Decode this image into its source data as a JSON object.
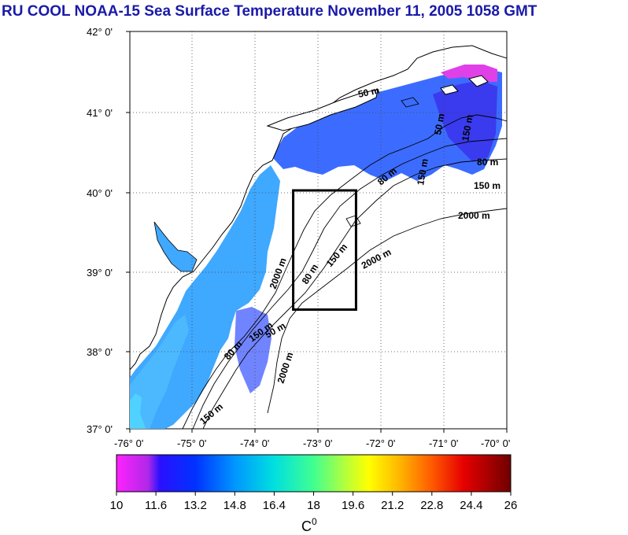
{
  "title": "RU COOL  NOAA-15 Sea Surface Temperature November 11, 2005 1058 GMT",
  "map": {
    "lon_ticks": [
      "-76° 0'",
      "-75° 0'",
      "-74° 0'",
      "-73° 0'",
      "-72° 0'",
      "-71° 0'",
      "-70° 0'"
    ],
    "lat_ticks": [
      "42° 0'",
      "41° 0'",
      "40° 0'",
      "39° 0'",
      "38° 0'",
      "37° 0'"
    ],
    "contour_labels": [
      "50 m",
      "80 m",
      "150 m",
      "2000 m",
      "2000 m",
      "80 m",
      "150 m",
      "2000 m",
      "80 m",
      "150 m",
      "50 m",
      "80 m",
      "150 m",
      "2000 m",
      "50 m",
      "150 m",
      "150 m"
    ],
    "study_box": {
      "lon": [
        -73.4,
        -72.4
      ],
      "lat": [
        38.5,
        40.0
      ]
    },
    "colors": {
      "land": "#ffffff",
      "no_data": "#ffffff",
      "contour": "#000000",
      "study_box": "#000000"
    }
  },
  "colorbar": {
    "ticks": [
      "10",
      "11.6",
      "13.2",
      "14.8",
      "16.4",
      "18",
      "19.6",
      "21.2",
      "22.8",
      "24.4",
      "26"
    ],
    "unit_label": "C",
    "unit_sup": "0",
    "min": 10,
    "max": 26,
    "colors": [
      "#ff22ff",
      "#5a1ed8",
      "#0000ff",
      "#0050ff",
      "#00b4ff",
      "#00e6c8",
      "#7cff64",
      "#ffff00",
      "#ffb400",
      "#ff5a00",
      "#e60000",
      "#800000"
    ]
  }
}
